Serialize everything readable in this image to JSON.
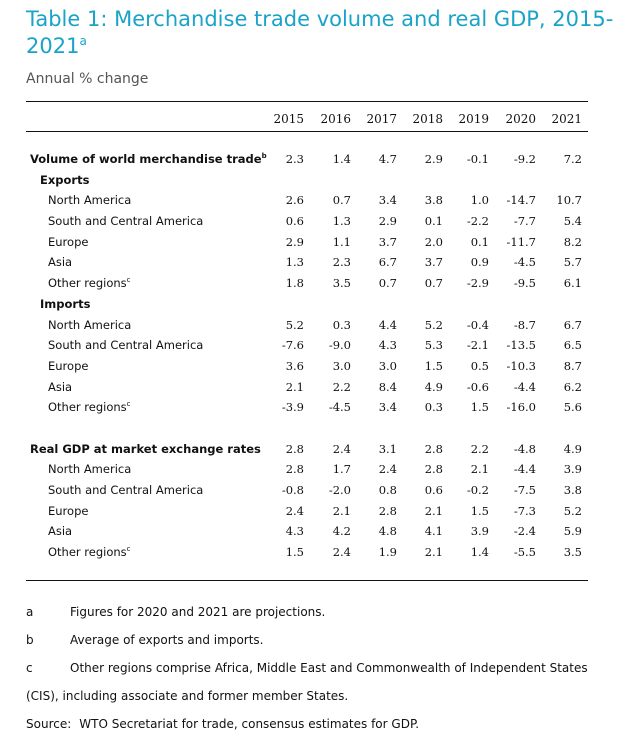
{
  "title": {
    "main": "Table 1: Merchandise trade volume and real GDP, 2015-2021",
    "marker": "a"
  },
  "subtitle": "Annual % change",
  "years": [
    "2015",
    "2016",
    "2017",
    "2018",
    "2019",
    "2020",
    "2021"
  ],
  "sections": [
    {
      "rows": [
        {
          "label": "Volume of world merchandise trade",
          "sup": "b",
          "level": 0,
          "values": [
            "2.3",
            "1.4",
            "4.7",
            "2.9",
            "-0.1",
            "-9.2",
            "7.2"
          ]
        },
        {
          "label": "Exports",
          "level": 1,
          "values": []
        },
        {
          "label": "North America",
          "level": 2,
          "values": [
            "2.6",
            "0.7",
            "3.4",
            "3.8",
            "1.0",
            "-14.7",
            "10.7"
          ]
        },
        {
          "label": "South and Central America",
          "level": 2,
          "values": [
            "0.6",
            "1.3",
            "2.9",
            "0.1",
            "-2.2",
            "-7.7",
            "5.4"
          ]
        },
        {
          "label": "Europe",
          "level": 2,
          "values": [
            "2.9",
            "1.1",
            "3.7",
            "2.0",
            "0.1",
            "-11.7",
            "8.2"
          ]
        },
        {
          "label": "Asia",
          "level": 2,
          "values": [
            "1.3",
            "2.3",
            "6.7",
            "3.7",
            "0.9",
            "-4.5",
            "5.7"
          ]
        },
        {
          "label": "Other regions",
          "sup": "c",
          "level": 2,
          "values": [
            "1.8",
            "3.5",
            "0.7",
            "0.7",
            "-2.9",
            "-9.5",
            "6.1"
          ]
        },
        {
          "label": "Imports",
          "level": 1,
          "values": []
        },
        {
          "label": "North America",
          "level": 2,
          "values": [
            "5.2",
            "0.3",
            "4.4",
            "5.2",
            "-0.4",
            "-8.7",
            "6.7"
          ]
        },
        {
          "label": "South and Central America",
          "level": 2,
          "values": [
            "-7.6",
            "-9.0",
            "4.3",
            "5.3",
            "-2.1",
            "-13.5",
            "6.5"
          ]
        },
        {
          "label": "Europe",
          "level": 2,
          "values": [
            "3.6",
            "3.0",
            "3.0",
            "1.5",
            "0.5",
            "-10.3",
            "8.7"
          ]
        },
        {
          "label": "Asia",
          "level": 2,
          "values": [
            "2.1",
            "2.2",
            "8.4",
            "4.9",
            "-0.6",
            "-4.4",
            "6.2"
          ]
        },
        {
          "label": "Other regions",
          "sup": "c",
          "level": 2,
          "values": [
            "-3.9",
            "-4.5",
            "3.4",
            "0.3",
            "1.5",
            "-16.0",
            "5.6"
          ]
        }
      ]
    },
    {
      "rows": [
        {
          "label": "Real GDP at market exchange rates",
          "level": 0,
          "values": [
            "2.8",
            "2.4",
            "3.1",
            "2.8",
            "2.2",
            "-4.8",
            "4.9"
          ]
        },
        {
          "label": "North America",
          "level": 2,
          "values": [
            "2.8",
            "1.7",
            "2.4",
            "2.8",
            "2.1",
            "-4.4",
            "3.9"
          ]
        },
        {
          "label": "South and Central America",
          "level": 2,
          "values": [
            "-0.8",
            "-2.0",
            "0.8",
            "0.6",
            "-0.2",
            "-7.5",
            "3.8"
          ]
        },
        {
          "label": "Europe",
          "level": 2,
          "values": [
            "2.4",
            "2.1",
            "2.8",
            "2.1",
            "1.5",
            "-7.3",
            "5.2"
          ]
        },
        {
          "label": "Asia",
          "level": 2,
          "values": [
            "4.3",
            "4.2",
            "4.8",
            "4.1",
            "3.9",
            "-2.4",
            "5.9"
          ]
        },
        {
          "label": "Other regions",
          "sup": "c",
          "level": 2,
          "values": [
            "1.5",
            "2.4",
            "1.9",
            "2.1",
            "1.4",
            "-5.5",
            "3.5"
          ]
        }
      ]
    }
  ],
  "notes": [
    {
      "key": "a",
      "text": "Figures for 2020 and 2021 are projections."
    },
    {
      "key": "b",
      "text": "Average of exports and imports."
    },
    {
      "key": "c",
      "text": "Other regions comprise Africa, Middle East and Commonwealth of Independent States",
      "continuation": "(CIS), including associate and former member States."
    }
  ],
  "source": {
    "label": "Source:",
    "text": "WTO Secretariat for trade, consensus estimates for GDP."
  },
  "colors": {
    "title": "#1aa3c9",
    "subtitle": "#555555",
    "text": "#111111"
  }
}
